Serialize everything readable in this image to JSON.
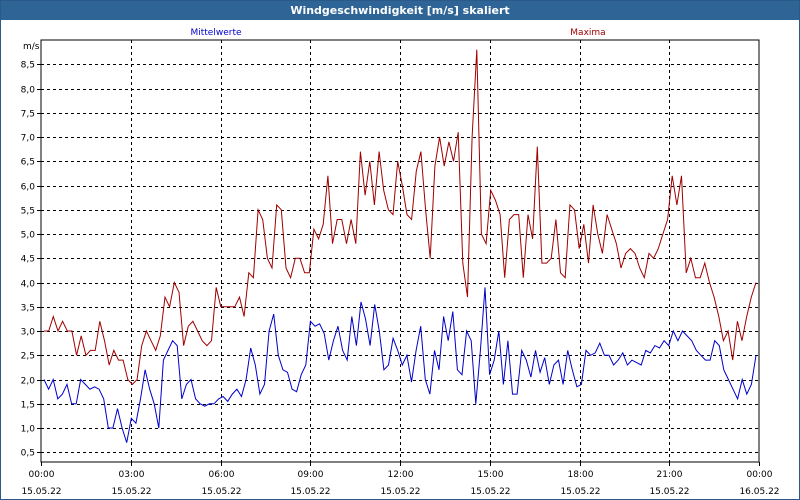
{
  "title": "Windgeschwindigkeit [m/s] skaliert",
  "chart_data": {
    "type": "line",
    "ylabel": "m/s",
    "ylim": [
      0.3,
      9.0
    ],
    "yticks": [
      "0,5",
      "1,0",
      "1,5",
      "2,0",
      "2,5",
      "3,0",
      "3,5",
      "4,0",
      "4,5",
      "5,0",
      "5,5",
      "6,0",
      "6,5",
      "7,0",
      "7,5",
      "8,0",
      "8,5"
    ],
    "ytick_values": [
      0.5,
      1.0,
      1.5,
      2.0,
      2.5,
      3.0,
      3.5,
      4.0,
      4.5,
      5.0,
      5.5,
      6.0,
      6.5,
      7.0,
      7.5,
      8.0,
      8.5
    ],
    "xlim": [
      0,
      24
    ],
    "xticks": [
      {
        "x": 0,
        "time": "00:00",
        "date": "15.05.22"
      },
      {
        "x": 3,
        "time": "03:00",
        "date": "15.05.22"
      },
      {
        "x": 6,
        "time": "06:00",
        "date": "15.05.22"
      },
      {
        "x": 9,
        "time": "09:00",
        "date": "15.05.22"
      },
      {
        "x": 12,
        "time": "12:00",
        "date": "15.05.22"
      },
      {
        "x": 15,
        "time": "15:00",
        "date": "15.05.22"
      },
      {
        "x": 18,
        "time": "18:00",
        "date": "15.05.22"
      },
      {
        "x": 21,
        "time": "21:00",
        "date": "15.05.22"
      },
      {
        "x": 24,
        "time": "00:00",
        "date": "16.05.22"
      }
    ],
    "grid": true,
    "series": [
      {
        "name": "Mittelwerte",
        "color": "#0000cc",
        "label_position": "top-left",
        "values": [
          2.0,
          1.8,
          2.0,
          1.6,
          1.7,
          1.9,
          1.5,
          1.5,
          2.0,
          1.9,
          1.8,
          1.85,
          1.8,
          1.6,
          1.0,
          1.0,
          1.4,
          1.0,
          0.7,
          1.2,
          1.1,
          1.6,
          2.2,
          1.8,
          1.5,
          1.0,
          2.4,
          2.6,
          2.8,
          2.7,
          1.6,
          1.9,
          2.0,
          1.6,
          1.5,
          1.45,
          1.5,
          1.5,
          1.6,
          1.65,
          1.55,
          1.7,
          1.8,
          1.65,
          2.0,
          2.65,
          2.3,
          1.7,
          1.9,
          3.0,
          3.35,
          2.5,
          2.2,
          2.15,
          1.8,
          1.75,
          2.1,
          2.3,
          3.2,
          3.1,
          3.15,
          2.95,
          2.4,
          2.8,
          3.1,
          2.6,
          2.4,
          3.3,
          2.7,
          3.6,
          3.25,
          2.7,
          3.55,
          3.0,
          2.2,
          2.3,
          2.85,
          2.6,
          2.3,
          2.5,
          1.95,
          2.6,
          3.1,
          2.0,
          1.7,
          2.6,
          2.2,
          3.3,
          2.8,
          3.4,
          2.2,
          2.1,
          3.0,
          2.8,
          1.5,
          2.6,
          3.9,
          2.1,
          2.4,
          3.0,
          1.9,
          2.8,
          1.7,
          1.7,
          2.6,
          2.4,
          2.05,
          2.6,
          2.15,
          2.45,
          1.9,
          2.3,
          2.4,
          1.9,
          2.6,
          2.2,
          1.85,
          1.9,
          2.6,
          2.5,
          2.55,
          2.75,
          2.5,
          2.5,
          2.3,
          2.4,
          2.55,
          2.3,
          2.4,
          2.35,
          2.3,
          2.6,
          2.55,
          2.7,
          2.65,
          2.8,
          2.7,
          3.0,
          2.8,
          3.0,
          2.9,
          2.8,
          2.6,
          2.5,
          2.4,
          2.4,
          2.8,
          2.7,
          2.2,
          2.0,
          1.8,
          1.6,
          2.0,
          1.7,
          1.9,
          2.5
        ]
      },
      {
        "name": "Maxima",
        "color": "#a00000",
        "label_position": "top-right",
        "values": [
          3.0,
          3.0,
          3.3,
          3.0,
          3.2,
          3.0,
          3.0,
          2.5,
          2.9,
          2.5,
          2.6,
          2.6,
          3.2,
          2.8,
          2.3,
          2.6,
          2.4,
          2.4,
          2.0,
          1.9,
          2.0,
          2.7,
          3.0,
          2.8,
          2.6,
          2.9,
          3.7,
          3.5,
          4.0,
          3.8,
          2.7,
          3.1,
          3.2,
          3.0,
          2.8,
          2.7,
          2.8,
          3.9,
          3.5,
          3.5,
          3.5,
          3.5,
          3.7,
          3.3,
          4.2,
          4.1,
          5.5,
          5.3,
          4.5,
          4.3,
          5.6,
          5.5,
          4.3,
          4.1,
          4.5,
          4.5,
          4.2,
          4.2,
          5.1,
          4.9,
          5.2,
          6.2,
          4.8,
          5.3,
          5.3,
          4.8,
          5.3,
          4.8,
          6.7,
          5.8,
          6.5,
          5.6,
          6.7,
          5.9,
          5.5,
          5.4,
          6.5,
          6.0,
          5.4,
          5.3,
          6.3,
          6.7,
          5.5,
          4.5,
          6.4,
          7.0,
          6.4,
          6.9,
          6.5,
          7.1,
          4.4,
          3.7,
          7.0,
          8.8,
          5.0,
          4.8,
          5.9,
          5.7,
          5.4,
          4.1,
          5.3,
          5.4,
          5.4,
          4.1,
          5.4,
          4.9,
          6.8,
          4.4,
          4.4,
          4.5,
          5.3,
          4.2,
          4.1,
          5.6,
          5.5,
          4.7,
          5.2,
          4.4,
          5.6,
          5.0,
          4.6,
          5.4,
          5.1,
          4.8,
          4.3,
          4.6,
          4.7,
          4.6,
          4.3,
          4.1,
          4.6,
          4.5,
          4.7,
          5.0,
          5.3,
          6.2,
          5.6,
          6.2,
          4.2,
          4.5,
          4.1,
          4.1,
          4.4,
          4.0,
          3.7,
          3.3,
          2.8,
          3.0,
          2.4,
          3.2,
          2.8,
          3.3,
          3.7,
          4.0
        ]
      }
    ]
  }
}
